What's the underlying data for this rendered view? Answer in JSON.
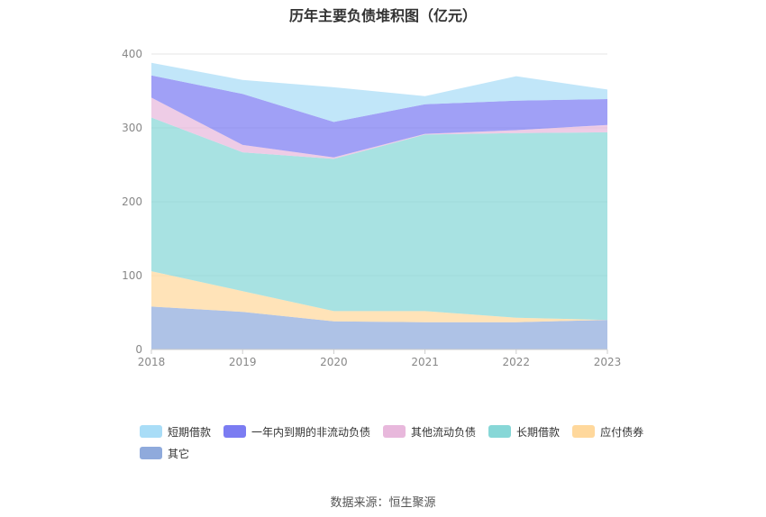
{
  "title": "历年主要负债堆积图（亿元）",
  "source": "数据来源：恒生聚源",
  "chart_data": {
    "type": "area",
    "stacked": true,
    "title": "历年主要负债堆积图（亿元）",
    "x": [
      "2018",
      "2019",
      "2020",
      "2021",
      "2022",
      "2023"
    ],
    "ylim": [
      0,
      400
    ],
    "yticks": [
      0,
      100,
      200,
      300,
      400
    ],
    "grid": true,
    "legend_position": "bottom",
    "series": [
      {
        "name": "其它",
        "color": "#8faadc",
        "values": [
          58,
          51,
          38,
          37,
          37,
          40
        ]
      },
      {
        "name": "应付债券",
        "color": "#ffd89c",
        "values": [
          48,
          28,
          14,
          15,
          6,
          0
        ]
      },
      {
        "name": "长期借款",
        "color": "#87d7d7",
        "values": [
          208,
          188,
          206,
          239,
          250,
          254
        ]
      },
      {
        "name": "其他流动负债",
        "color": "#e8b8dc",
        "values": [
          27,
          10,
          2,
          1,
          4,
          10
        ]
      },
      {
        "name": "一年内到期的非流动负债",
        "color": "#7b7cf2",
        "values": [
          30,
          69,
          48,
          40,
          40,
          35
        ]
      },
      {
        "name": "短期借款",
        "color": "#a9ddf7",
        "values": [
          17,
          19,
          47,
          11,
          33,
          13
        ]
      }
    ],
    "legend_order": [
      "短期借款",
      "一年内到期的非流动负债",
      "其他流动负债",
      "长期借款",
      "应付债券",
      "其它"
    ]
  }
}
